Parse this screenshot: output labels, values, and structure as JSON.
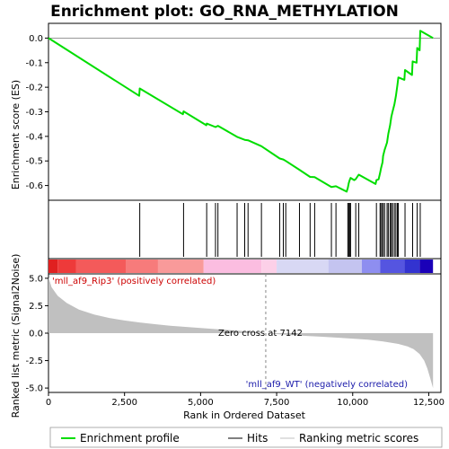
{
  "chart_data": {
    "type": "line",
    "title": "Enrichment plot: GO_RNA_METHYLATION",
    "xlabel": "Rank in Ordered Dataset",
    "ylabel_top": "Enrichment score (ES)",
    "ylabel_bottom": "Ranked list metric (Signal2Noise)",
    "x_range": [
      0,
      12900
    ],
    "x_ticks": [
      0,
      2500,
      5000,
      7500,
      10000,
      12500
    ],
    "x_tick_labels": [
      "0",
      "2,500",
      "5,000",
      "7,500",
      "10,000",
      "12,500"
    ],
    "es_ylim": [
      -0.66,
      0.06
    ],
    "es_ticks": [
      0.0,
      -0.1,
      -0.2,
      -0.3,
      -0.4,
      -0.5,
      -0.6
    ],
    "es_tick_labels": [
      "0.0",
      "-0.1",
      "-0.2",
      "-0.3",
      "-0.4",
      "-0.5",
      "-0.6"
    ],
    "metric_ylim": [
      -5.4,
      5.4
    ],
    "metric_ticks": [
      5.0,
      2.5,
      0.0,
      -2.5,
      -5.0
    ],
    "metric_tick_labels": [
      "5.0",
      "2.5",
      "0.0",
      "-2.5",
      "-5.0"
    ],
    "es_points": [
      [
        0,
        0
      ],
      [
        2980,
        -0.235
      ],
      [
        3000,
        -0.205
      ],
      [
        4420,
        -0.31
      ],
      [
        4440,
        -0.298
      ],
      [
        5190,
        -0.355
      ],
      [
        5200,
        -0.348
      ],
      [
        5490,
        -0.362
      ],
      [
        5570,
        -0.357
      ],
      [
        6200,
        -0.402
      ],
      [
        6450,
        -0.414
      ],
      [
        6560,
        -0.416
      ],
      [
        7000,
        -0.44
      ],
      [
        7600,
        -0.49
      ],
      [
        7720,
        -0.494
      ],
      [
        7800,
        -0.5
      ],
      [
        8250,
        -0.536
      ],
      [
        8600,
        -0.565
      ],
      [
        8750,
        -0.566
      ],
      [
        9300,
        -0.606
      ],
      [
        9450,
        -0.603
      ],
      [
        9800,
        -0.625
      ],
      [
        9840,
        -0.61
      ],
      [
        9870,
        -0.59
      ],
      [
        9900,
        -0.578
      ],
      [
        9930,
        -0.569
      ],
      [
        10050,
        -0.578
      ],
      [
        10100,
        -0.574
      ],
      [
        10200,
        -0.556
      ],
      [
        10750,
        -0.594
      ],
      [
        10780,
        -0.578
      ],
      [
        10850,
        -0.575
      ],
      [
        10900,
        -0.55
      ],
      [
        10930,
        -0.53
      ],
      [
        10980,
        -0.505
      ],
      [
        11000,
        -0.48
      ],
      [
        11050,
        -0.455
      ],
      [
        11130,
        -0.425
      ],
      [
        11170,
        -0.39
      ],
      [
        11230,
        -0.355
      ],
      [
        11270,
        -0.32
      ],
      [
        11310,
        -0.3
      ],
      [
        11370,
        -0.27
      ],
      [
        11420,
        -0.235
      ],
      [
        11470,
        -0.19
      ],
      [
        11500,
        -0.16
      ],
      [
        11700,
        -0.17
      ],
      [
        11720,
        -0.13
      ],
      [
        11950,
        -0.15
      ],
      [
        11970,
        -0.095
      ],
      [
        12100,
        -0.1
      ],
      [
        12120,
        -0.04
      ],
      [
        12200,
        -0.05
      ],
      [
        12220,
        0.03
      ],
      [
        12640,
        0.0
      ]
    ],
    "hits": [
      3000,
      4440,
      5200,
      5490,
      5570,
      6200,
      6450,
      6560,
      7000,
      7600,
      7720,
      7800,
      8250,
      8600,
      8750,
      9300,
      9450,
      9840,
      9870,
      9900,
      9930,
      10100,
      10200,
      10780,
      10900,
      10930,
      10980,
      11000,
      11050,
      11130,
      11170,
      11230,
      11270,
      11310,
      11370,
      11420,
      11470,
      11500,
      11720,
      11970,
      12120,
      12220
    ],
    "metric_curve": [
      [
        0,
        5.1
      ],
      [
        100,
        4.2
      ],
      [
        300,
        3.4
      ],
      [
        600,
        2.75
      ],
      [
        1000,
        2.15
      ],
      [
        1500,
        1.7
      ],
      [
        2000,
        1.38
      ],
      [
        2500,
        1.15
      ],
      [
        3000,
        0.97
      ],
      [
        3500,
        0.82
      ],
      [
        4000,
        0.68
      ],
      [
        4500,
        0.57
      ],
      [
        5000,
        0.47
      ],
      [
        5500,
        0.37
      ],
      [
        6000,
        0.27
      ],
      [
        6500,
        0.17
      ],
      [
        7142,
        0.0
      ],
      [
        7500,
        -0.08
      ],
      [
        8000,
        -0.18
      ],
      [
        8500,
        -0.25
      ],
      [
        9000,
        -0.33
      ],
      [
        9500,
        -0.41
      ],
      [
        10000,
        -0.5
      ],
      [
        10500,
        -0.6
      ],
      [
        11000,
        -0.75
      ],
      [
        11500,
        -0.98
      ],
      [
        11800,
        -1.2
      ],
      [
        12000,
        -1.45
      ],
      [
        12200,
        -1.9
      ],
      [
        12350,
        -2.5
      ],
      [
        12450,
        -3.2
      ],
      [
        12550,
        -4.1
      ],
      [
        12640,
        -5.0
      ]
    ],
    "zero_cross": 7142,
    "zero_cross_label": "Zero cross at 7142",
    "pos_label": "'mll_af9_Rip3' (positively correlated)",
    "neg_label": "'mll_af9_WT' (negatively correlated)",
    "legend": [
      "Enrichment profile",
      "Hits",
      "Ranking metric scores"
    ],
    "colors": {
      "es_line": "#00dd00",
      "hits": "#000000",
      "metric_fill": "#c0c0c0",
      "pos_label": "#cc0000",
      "neg_label": "#1a1aaa",
      "zero_line": "#888888"
    },
    "colorbar": [
      {
        "start": 0,
        "end": 300,
        "color": "#e02020"
      },
      {
        "start": 300,
        "end": 900,
        "color": "#ee3a3a"
      },
      {
        "start": 900,
        "end": 2550,
        "color": "#f45a5a"
      },
      {
        "start": 2550,
        "end": 3600,
        "color": "#f77b7b"
      },
      {
        "start": 3600,
        "end": 5100,
        "color": "#f99a9a"
      },
      {
        "start": 5100,
        "end": 7000,
        "color": "#fbbde0"
      },
      {
        "start": 7000,
        "end": 7500,
        "color": "#fcd0e8"
      },
      {
        "start": 7500,
        "end": 9200,
        "color": "#d8d8f4"
      },
      {
        "start": 9200,
        "end": 10300,
        "color": "#c4c4f0"
      },
      {
        "start": 10300,
        "end": 10900,
        "color": "#8e8ef0"
      },
      {
        "start": 10900,
        "end": 11700,
        "color": "#5555e0"
      },
      {
        "start": 11700,
        "end": 12200,
        "color": "#3333d0"
      },
      {
        "start": 12200,
        "end": 12640,
        "color": "#1a00b8"
      }
    ]
  }
}
